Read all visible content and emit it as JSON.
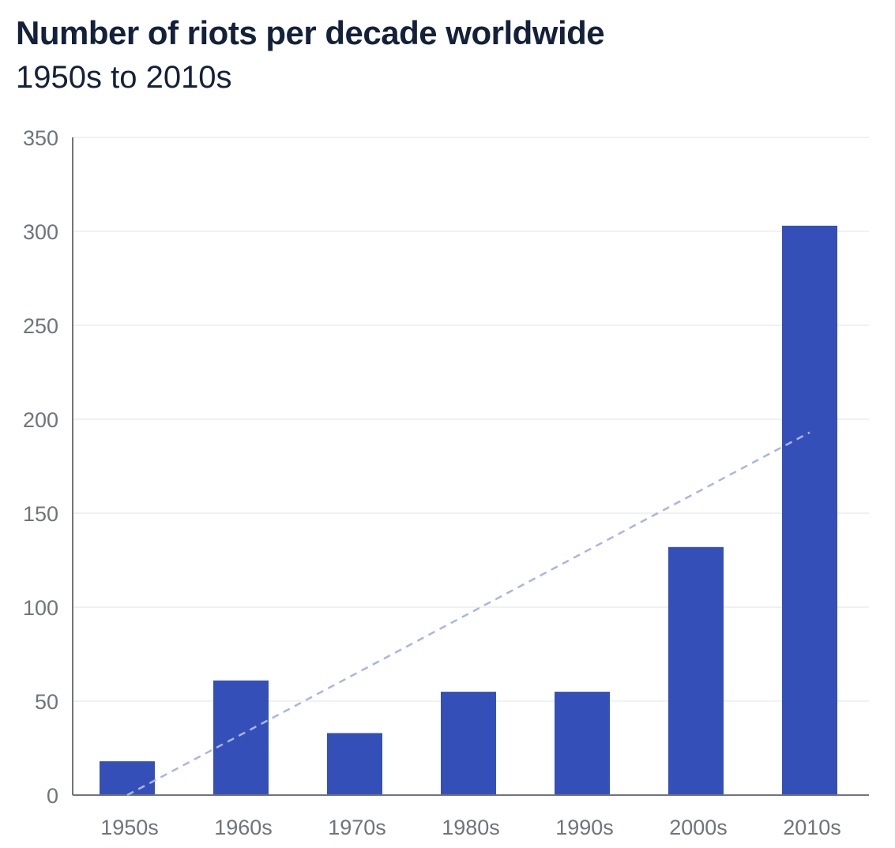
{
  "chart_data": {
    "type": "bar",
    "title": "Number of riots per decade worldwide",
    "subtitle": "1950s to 2010s",
    "categories": [
      "1950s",
      "1960s",
      "1970s",
      "1980s",
      "1990s",
      "2000s",
      "2010s"
    ],
    "values": [
      18,
      61,
      33,
      55,
      55,
      132,
      303
    ],
    "trendline": {
      "style": "dashed",
      "from": 0,
      "to": 193
    },
    "xlabel": "",
    "ylabel": "",
    "ylim": [
      0,
      350
    ],
    "yticks": [
      0,
      50,
      100,
      150,
      200,
      250,
      300,
      350
    ],
    "grid": true,
    "colors": {
      "bar": "#3450b8",
      "trend": "#a9b6e0",
      "grid": "#f0f1f3",
      "axis": "#6f747c"
    }
  }
}
